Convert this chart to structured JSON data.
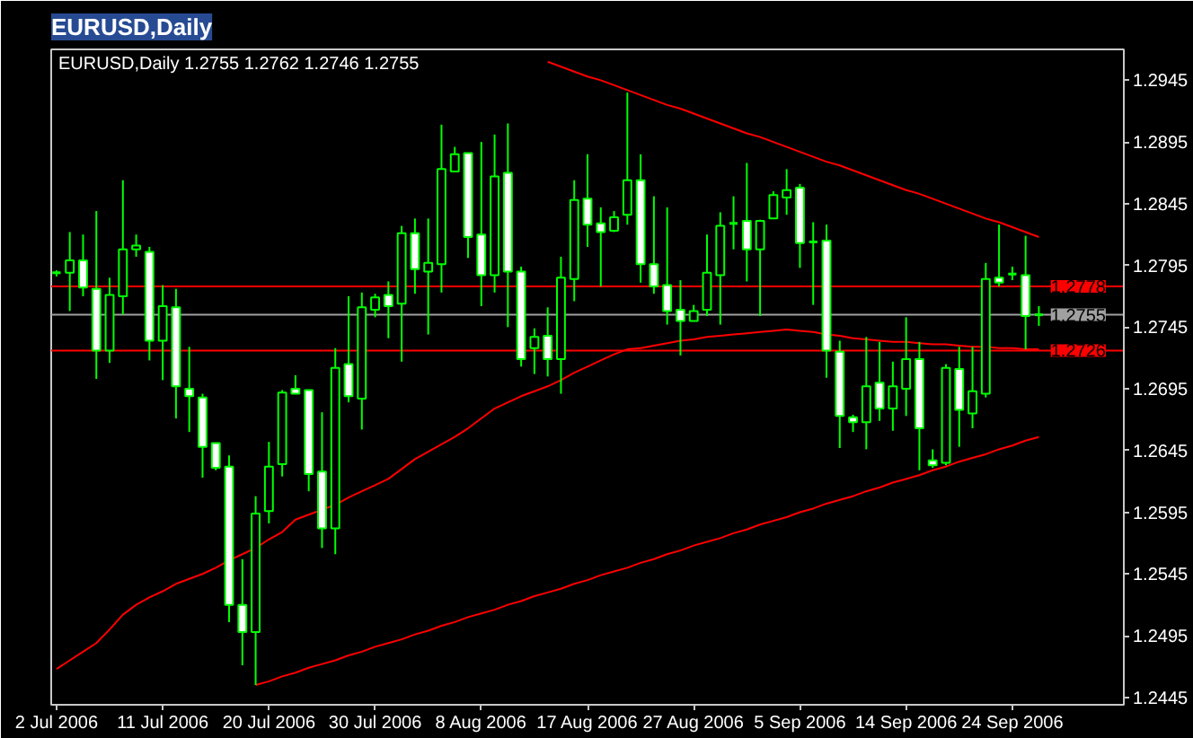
{
  "chart_data": {
    "type": "candlestick",
    "title": "EURUSD,Daily",
    "subtitle": "EURUSD,Daily  1.2755 1.2762 1.2746 1.2755",
    "color": "#00ff00",
    "categories": [
      "2 Jul 2006",
      null,
      null,
      null,
      null,
      null,
      null,
      null,
      "11 Jul 2006",
      null,
      null,
      null,
      null,
      null,
      null,
      null,
      "20 Jul 2006",
      null,
      null,
      null,
      null,
      null,
      null,
      null,
      "30 Jul 2006",
      null,
      null,
      null,
      null,
      null,
      null,
      null,
      "8 Aug 2006",
      null,
      null,
      null,
      null,
      null,
      null,
      null,
      "17 Aug 2006",
      null,
      null,
      null,
      null,
      null,
      null,
      null,
      "27 Aug 2006",
      null,
      null,
      null,
      null,
      null,
      null,
      null,
      "5 Sep 2006",
      null,
      null,
      null,
      null,
      null,
      null,
      null,
      "14 Sep 2006",
      null,
      null,
      null,
      null,
      null,
      null,
      null,
      "24 Sep 2006",
      null,
      null
    ],
    "ohlc": [
      [
        1.2789,
        1.2791,
        1.2786,
        1.2789
      ],
      [
        1.2789,
        1.2822,
        1.2758,
        1.2799
      ],
      [
        1.2799,
        1.282,
        1.277,
        1.2777
      ],
      [
        1.2776,
        1.2839,
        1.2703,
        1.2726
      ],
      [
        1.2726,
        1.2785,
        1.2716,
        1.2771
      ],
      [
        1.277,
        1.2864,
        1.2755,
        1.2808
      ],
      [
        1.2808,
        1.282,
        1.2802,
        1.2811
      ],
      [
        1.2806,
        1.281,
        1.2718,
        1.2734
      ],
      [
        1.2734,
        1.2779,
        1.2702,
        1.2762
      ],
      [
        1.2761,
        1.2776,
        1.2671,
        1.2697
      ],
      [
        1.2695,
        1.2729,
        1.266,
        1.2689
      ],
      [
        1.2688,
        1.2691,
        1.2623,
        1.2648
      ],
      [
        1.2651,
        1.2651,
        1.2629,
        1.2631
      ],
      [
        1.2632,
        1.2641,
        1.2506,
        1.252
      ],
      [
        1.252,
        1.2557,
        1.2471,
        1.2498
      ],
      [
        1.2498,
        1.2608,
        1.2455,
        1.2594
      ],
      [
        1.2596,
        1.2652,
        1.2586,
        1.2632
      ],
      [
        1.2634,
        1.2694,
        1.2624,
        1.2692
      ],
      [
        1.2695,
        1.2706,
        1.2691,
        1.2691
      ],
      [
        1.2694,
        1.2694,
        1.2612,
        1.2626
      ],
      [
        1.2628,
        1.2676,
        1.2566,
        1.2582
      ],
      [
        1.2582,
        1.2728,
        1.2561,
        1.2712
      ],
      [
        1.2715,
        1.277,
        1.2684,
        1.2689
      ],
      [
        1.2687,
        1.2773,
        1.2662,
        1.2761
      ],
      [
        1.2759,
        1.2772,
        1.2753,
        1.2769
      ],
      [
        1.2771,
        1.2782,
        1.2736,
        1.2762
      ],
      [
        1.2764,
        1.2827,
        1.2717,
        1.2821
      ],
      [
        1.2821,
        1.2833,
        1.2772,
        1.2792
      ],
      [
        1.279,
        1.2833,
        1.2739,
        1.2797
      ],
      [
        1.2796,
        1.2909,
        1.2773,
        1.2873
      ],
      [
        1.2871,
        1.2891,
        1.2871,
        1.2885
      ],
      [
        1.2886,
        1.2886,
        1.2801,
        1.2818
      ],
      [
        1.282,
        1.2895,
        1.2762,
        1.2787
      ],
      [
        1.2787,
        1.2901,
        1.2773,
        1.2867
      ],
      [
        1.287,
        1.291,
        1.2745,
        1.279
      ],
      [
        1.279,
        1.2794,
        1.2713,
        1.2719
      ],
      [
        1.2728,
        1.2744,
        1.2707,
        1.2737
      ],
      [
        1.2738,
        1.2761,
        1.2705,
        1.2719
      ],
      [
        1.2719,
        1.2802,
        1.2691,
        1.2785
      ],
      [
        1.2784,
        1.2864,
        1.2766,
        1.2848
      ],
      [
        1.2849,
        1.2885,
        1.281,
        1.2828
      ],
      [
        1.2829,
        1.2842,
        1.2778,
        1.2822
      ],
      [
        1.2823,
        1.2839,
        1.2822,
        1.2834
      ],
      [
        1.2836,
        1.2935,
        1.2828,
        1.2864
      ],
      [
        1.2864,
        1.2885,
        1.2781,
        1.2796
      ],
      [
        1.2796,
        1.2851,
        1.2772,
        1.2778
      ],
      [
        1.2779,
        1.2842,
        1.2747,
        1.2758
      ],
      [
        1.2759,
        1.2783,
        1.2722,
        1.275
      ],
      [
        1.275,
        1.2763,
        1.275,
        1.2758
      ],
      [
        1.2759,
        1.282,
        1.2754,
        1.2789
      ],
      [
        1.2787,
        1.2838,
        1.2747,
        1.2827
      ],
      [
        1.2829,
        1.2851,
        1.2808,
        1.2829
      ],
      [
        1.2831,
        1.2878,
        1.2782,
        1.2808
      ],
      [
        1.2808,
        1.2832,
        1.2754,
        1.2831
      ],
      [
        1.2833,
        1.2855,
        1.2833,
        1.2852
      ],
      [
        1.285,
        1.2873,
        1.2836,
        1.2856
      ],
      [
        1.2858,
        1.2861,
        1.2793,
        1.2813
      ],
      [
        1.2814,
        1.283,
        1.2763,
        1.2814
      ],
      [
        1.2815,
        1.2828,
        1.2704,
        1.2726
      ],
      [
        1.2725,
        1.2734,
        1.2647,
        1.2673
      ],
      [
        1.2672,
        1.2674,
        1.266,
        1.2668
      ],
      [
        1.2668,
        1.2737,
        1.2646,
        1.2697
      ],
      [
        1.27,
        1.2733,
        1.2669,
        1.2679
      ],
      [
        1.2679,
        1.2717,
        1.2661,
        1.2697
      ],
      [
        1.2695,
        1.2753,
        1.2673,
        1.2719
      ],
      [
        1.2719,
        1.2733,
        1.2629,
        1.2663
      ],
      [
        1.2637,
        1.2646,
        1.2631,
        1.2633
      ],
      [
        1.2635,
        1.2715,
        1.2633,
        1.2712
      ],
      [
        1.2711,
        1.2729,
        1.2648,
        1.2678
      ],
      [
        1.2675,
        1.2729,
        1.2663,
        1.2693
      ],
      [
        1.2691,
        1.2797,
        1.2688,
        1.2784
      ],
      [
        1.2785,
        1.2828,
        1.2778,
        1.2781
      ],
      [
        1.2788,
        1.2794,
        1.2783,
        1.2788
      ],
      [
        1.2787,
        1.2819,
        1.2727,
        1.2754
      ],
      [
        1.2755,
        1.2762,
        1.2746,
        1.2755
      ]
    ],
    "series": [
      {
        "type": "line",
        "color": "#ff0000",
        "values": [
          1.2468,
          1.2475,
          1.2482,
          1.2489,
          1.25,
          1.2512,
          1.252,
          1.2526,
          1.2531,
          1.2537,
          1.2541,
          1.2545,
          1.255,
          1.2556,
          1.2561,
          1.2566,
          1.2573,
          1.2579,
          1.2589,
          1.2593,
          1.2597,
          1.2601,
          1.2607,
          1.2612,
          1.2617,
          1.2622,
          1.263,
          1.2638,
          1.2644,
          1.265,
          1.2656,
          1.2663,
          1.2671,
          1.2679,
          1.2684,
          1.2689,
          1.2693,
          1.2697,
          1.2702,
          1.2708,
          1.2713,
          1.2718,
          1.2723,
          1.2727,
          1.2728,
          1.273,
          1.2732,
          1.2734,
          1.2735,
          1.2737,
          1.2738,
          1.2739,
          1.274,
          1.2741,
          1.2742,
          1.2743,
          1.2742,
          1.2741,
          1.2739,
          1.2738,
          1.2736,
          1.2735,
          1.2734,
          1.2733,
          1.2733,
          1.2732,
          1.2731,
          1.2731,
          1.273,
          1.2729,
          1.2729,
          1.2728,
          1.2728,
          1.2727,
          1.2727
        ]
      },
      {
        "type": "line",
        "color": "#ff0000",
        "values": [
          null,
          null,
          null,
          null,
          null,
          null,
          null,
          null,
          null,
          null,
          null,
          null,
          null,
          null,
          null,
          null,
          null,
          null,
          null,
          null,
          null,
          null,
          null,
          null,
          null,
          null,
          null,
          null,
          null,
          null,
          null,
          null,
          null,
          null,
          null,
          null,
          null,
          1.296,
          1.2956,
          1.2952,
          1.2948,
          1.2945,
          1.2941,
          1.2937,
          1.2933,
          1.2929,
          1.2925,
          1.2922,
          1.2918,
          1.2914,
          1.291,
          1.2906,
          1.2902,
          1.2899,
          1.2895,
          1.2891,
          1.2887,
          1.2883,
          1.2879,
          1.2876,
          1.2872,
          1.2868,
          1.2864,
          1.286,
          1.2856,
          1.2853,
          1.2849,
          1.2845,
          1.2841,
          1.2837,
          1.2833,
          1.283,
          1.2826,
          1.2822,
          1.2818
        ]
      },
      {
        "type": "line",
        "color": "#ff0000",
        "values": [
          null,
          null,
          null,
          null,
          null,
          null,
          null,
          null,
          null,
          null,
          null,
          null,
          null,
          null,
          null,
          1.2455,
          1.2458,
          1.2462,
          1.2465,
          1.2469,
          1.2472,
          1.2475,
          1.2479,
          1.2482,
          1.2486,
          1.2489,
          1.2492,
          1.2496,
          1.2499,
          1.2503,
          1.2506,
          1.251,
          1.2513,
          1.2516,
          1.252,
          1.2523,
          1.2527,
          1.253,
          1.2533,
          1.2537,
          1.254,
          1.2544,
          1.2547,
          1.255,
          1.2554,
          1.2557,
          1.2561,
          1.2564,
          1.2568,
          1.2571,
          1.2574,
          1.2578,
          1.2581,
          1.2585,
          1.2588,
          1.2591,
          1.2595,
          1.2598,
          1.2602,
          1.2605,
          1.2608,
          1.2612,
          1.2615,
          1.2619,
          1.2622,
          1.2625,
          1.2629,
          1.2632,
          1.2636,
          1.2639,
          1.2642,
          1.2646,
          1.2649,
          1.2653,
          1.2656
        ]
      }
    ],
    "ref_lines": [
      {
        "axis": "y",
        "value": 1.2778,
        "label": "1.2778",
        "color": "#ff0000"
      },
      {
        "axis": "y",
        "value": 1.2755,
        "label": "1.2755",
        "color": "#a0a0a0"
      },
      {
        "axis": "y",
        "value": 1.2726,
        "label": "1.2726",
        "color": "#ff0000"
      }
    ],
    "ylim": [
      1.2439,
      1.297
    ],
    "yticks": [
      1.2445,
      1.2495,
      1.2545,
      1.2595,
      1.2645,
      1.2695,
      1.2745,
      1.2795,
      1.2845,
      1.2895,
      1.2945
    ]
  }
}
